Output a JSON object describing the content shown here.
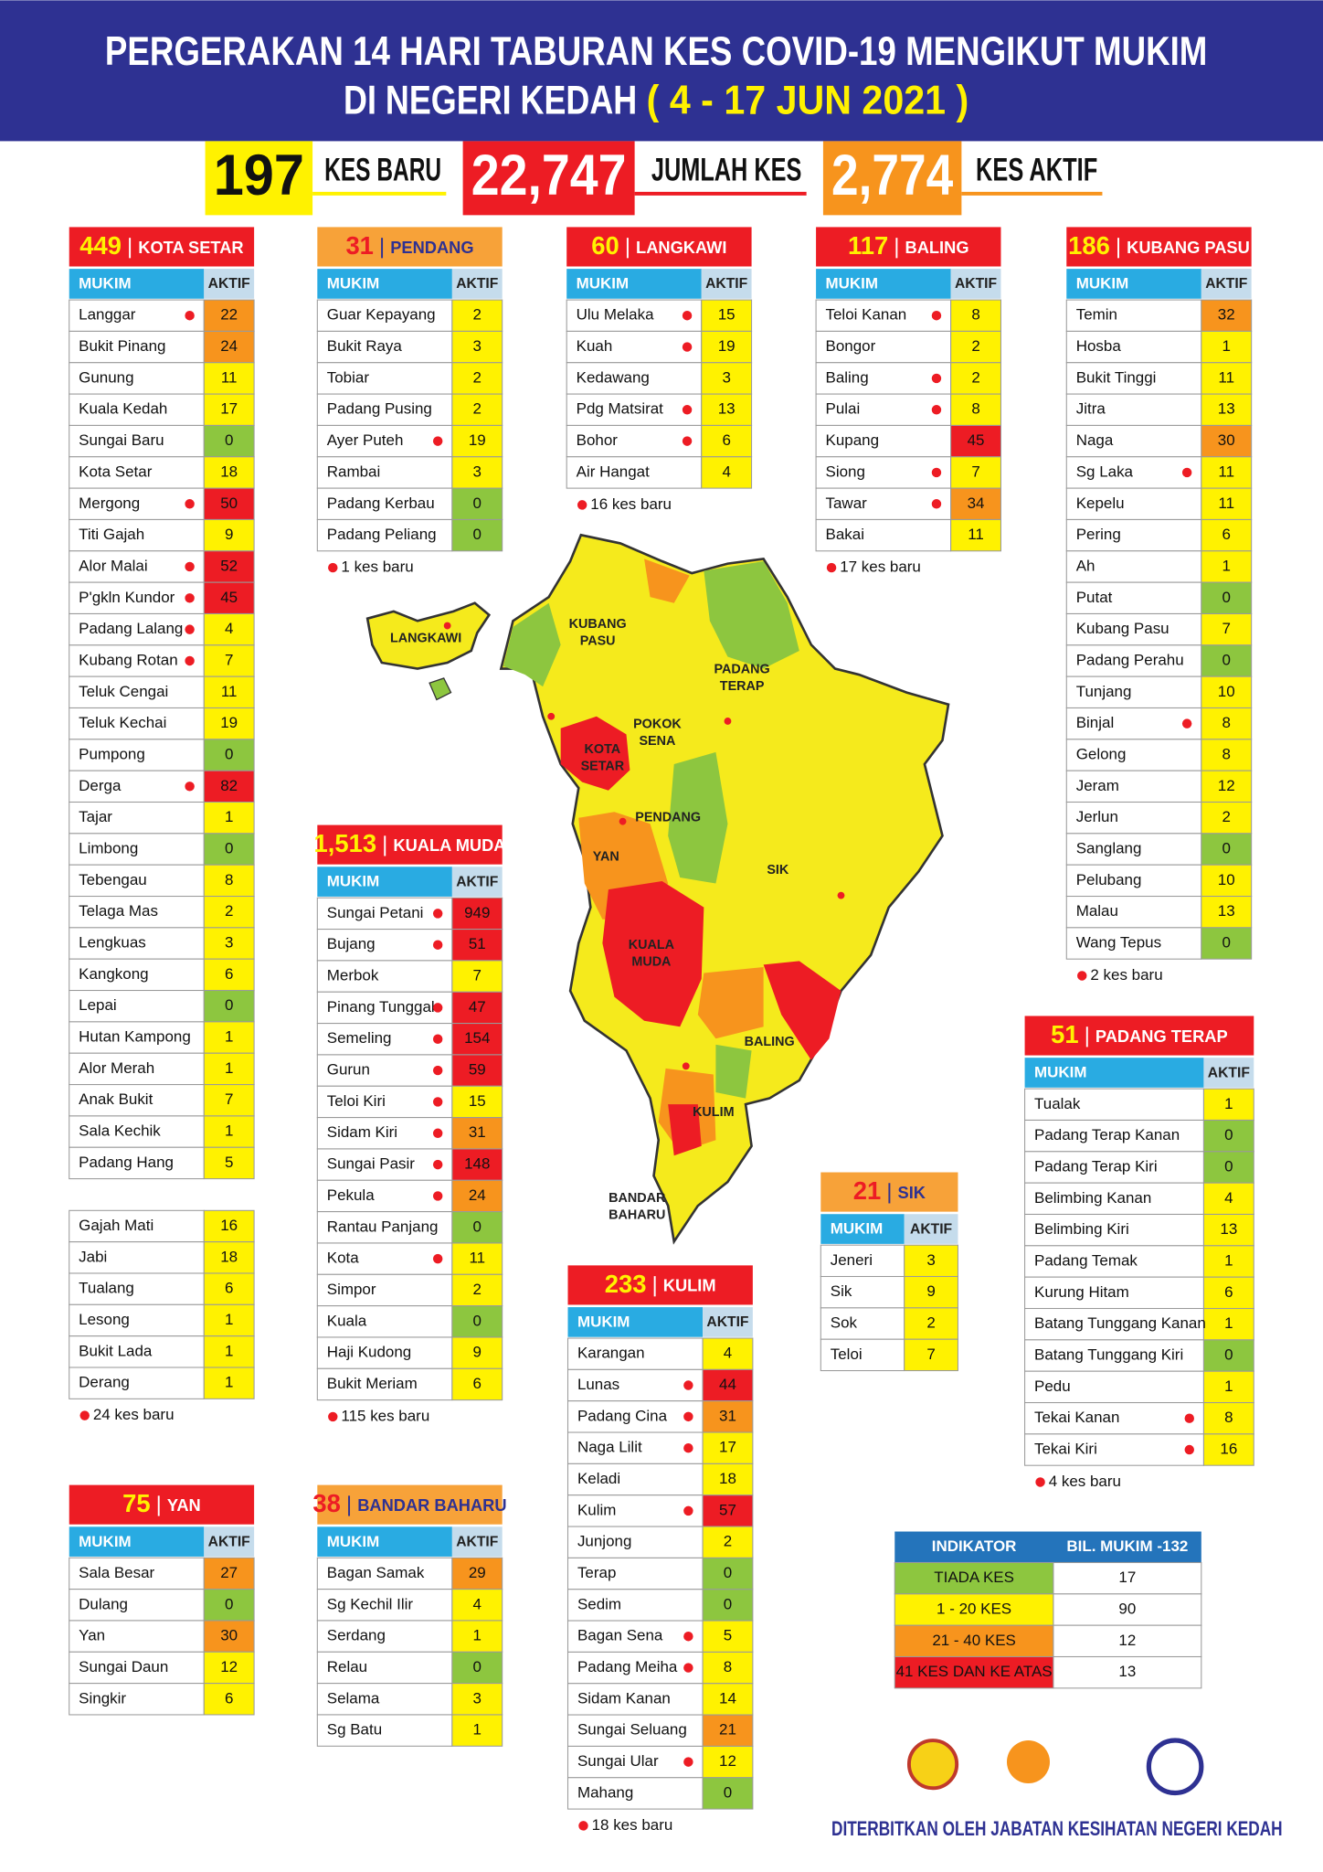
{
  "header": {
    "title_line1": "PERGERAKAN 14 HARI TABURAN KES COVID-19 MENGIKUT MUKIM",
    "title_line2": "DI NEGERI KEDAH",
    "date": "( 4 - 17 JUN 2021 )"
  },
  "stats": [
    {
      "number": 197,
      "label": "KES BARU",
      "color": "#fff200",
      "text_color": "#111111"
    },
    {
      "number": {
        "value": 22747,
        "label": "22,747"
      },
      "label": "JUMLAH KES",
      "color": "#ed1c24",
      "text_color": "#ffffff"
    },
    {
      "number": {
        "value": 2774,
        "label": "2,774"
      },
      "label": "KES AKTIF",
      "color": "#f7941d",
      "text_color": "#ffffff"
    }
  ],
  "table_header": [
    "MUKIM",
    "AKTIF"
  ],
  "districts": [
    {
      "total": 449,
      "name": "KOTA SETAR",
      "color": "#ed1c24",
      "number_color": "#fff200",
      "name_color": "#ffffff",
      "rows": [
        [
          "Langgar",
          22,
          true
        ],
        [
          "Bukit Pinang",
          24,
          false
        ],
        [
          "Gunung",
          11,
          false
        ],
        [
          "Kuala Kedah",
          17,
          false
        ],
        [
          "Sungai Baru",
          0,
          false
        ],
        [
          "Kota Setar",
          18,
          false
        ],
        [
          "Mergong",
          50,
          true
        ],
        [
          "Titi Gajah",
          9,
          false
        ],
        [
          "Alor Malai",
          52,
          true
        ],
        [
          "P'gkln Kundor",
          45,
          true
        ],
        [
          "Padang Lalang",
          4,
          true
        ],
        [
          "Kubang Rotan",
          7,
          true
        ],
        [
          "Teluk Cengai",
          11,
          false
        ],
        [
          "Teluk Kechai",
          19,
          false
        ],
        [
          "Pumpong",
          0,
          false
        ],
        [
          "Derga",
          82,
          true
        ],
        [
          "Tajar",
          1,
          false
        ],
        [
          "Limbong",
          0,
          false
        ],
        [
          "Tebengau",
          8,
          false
        ],
        [
          "Telaga Mas",
          2,
          false
        ],
        [
          "Lengkuas",
          3,
          false
        ],
        [
          "Kangkong",
          6,
          false
        ],
        [
          "Lepai",
          0,
          false
        ],
        [
          "Hutan Kampong",
          1,
          false
        ],
        [
          "Alor Merah",
          1,
          false
        ],
        [
          "Anak Bukit",
          7,
          false
        ],
        [
          "Sala Kechik",
          1,
          false
        ],
        [
          "Padang Hang",
          5,
          false
        ]
      ],
      "rows_more": [
        [
          "Gajah Mati",
          16,
          false
        ],
        [
          "Jabi",
          18,
          false
        ],
        [
          "Tualang",
          6,
          false
        ],
        [
          "Lesong",
          1,
          false
        ],
        [
          "Bukit Lada",
          1,
          false
        ],
        [
          "Derang",
          1,
          false
        ]
      ],
      "note": "24 kes baru"
    },
    {
      "total": 31,
      "name": "PENDANG",
      "color": "#f7a239",
      "number_color": "#ed1c24",
      "name_color": "#2e3192",
      "rows": [
        [
          "Guar Kepayang",
          2,
          false
        ],
        [
          "Bukit Raya",
          3,
          false
        ],
        [
          "Tobiar",
          2,
          false
        ],
        [
          "Padang Pusing",
          2,
          false
        ],
        [
          "Ayer Puteh",
          19,
          true
        ],
        [
          "Rambai",
          3,
          false
        ],
        [
          "Padang Kerbau",
          0,
          false
        ],
        [
          "Padang Peliang",
          0,
          false
        ]
      ],
      "note": "1 kes baru"
    },
    {
      "total": 60,
      "name": "LANGKAWI",
      "color": "#ed1c24",
      "number_color": "#fff200",
      "name_color": "#ffffff",
      "rows": [
        [
          "Ulu Melaka",
          15,
          true
        ],
        [
          "Kuah",
          19,
          true
        ],
        [
          "Kedawang",
          3,
          false
        ],
        [
          "Pdg Matsirat",
          13,
          true
        ],
        [
          "Bohor",
          6,
          true
        ],
        [
          "Air Hangat",
          4,
          false
        ]
      ],
      "note": "16 kes baru"
    },
    {
      "total": 117,
      "name": "BALING",
      "color": "#ed1c24",
      "number_color": "#fff200",
      "name_color": "#ffffff",
      "rows": [
        [
          "Teloi Kanan",
          8,
          true
        ],
        [
          "Bongor",
          2,
          false
        ],
        [
          "Baling",
          2,
          true
        ],
        [
          "Pulai",
          8,
          true
        ],
        [
          "Kupang",
          45,
          false
        ],
        [
          "Siong",
          7,
          true
        ],
        [
          "Tawar",
          34,
          true
        ],
        [
          "Bakai",
          11,
          false
        ]
      ],
      "note": "17 kes baru"
    },
    {
      "total": 186,
      "name": "KUBANG PASU",
      "color": "#ed1c24",
      "number_color": "#fff200",
      "name_color": "#ffffff",
      "rows": [
        [
          "Temin",
          32,
          false
        ],
        [
          "Hosba",
          1,
          false
        ],
        [
          "Bukit Tinggi",
          11,
          false
        ],
        [
          "Jitra",
          13,
          false
        ],
        [
          "Naga",
          30,
          false
        ],
        [
          "Sg Laka",
          11,
          true
        ],
        [
          "Kepelu",
          11,
          false
        ],
        [
          "Pering",
          6,
          false
        ],
        [
          "Ah",
          1,
          false
        ],
        [
          "Putat",
          0,
          false
        ],
        [
          "Kubang Pasu",
          7,
          false
        ],
        [
          "Padang Perahu",
          0,
          false
        ],
        [
          "Tunjang",
          10,
          false
        ],
        [
          "Binjal",
          8,
          true
        ],
        [
          "Gelong",
          8,
          false
        ],
        [
          "Jeram",
          12,
          false
        ],
        [
          "Jerlun",
          2,
          false
        ],
        [
          "Sanglang",
          0,
          false
        ],
        [
          "Pelubang",
          10,
          false
        ],
        [
          "Malau",
          13,
          false
        ],
        [
          "Wang Tepus",
          0,
          false
        ]
      ],
      "note": "2 kes baru"
    },
    {
      "total": {
        "value": 1513,
        "label": "1,513"
      },
      "name": "KUALA MUDA",
      "color": "#ed1c24",
      "number_color": "#fff200",
      "name_color": "#ffffff",
      "rows": [
        [
          "Sungai Petani",
          949,
          true
        ],
        [
          "Bujang",
          51,
          true
        ],
        [
          "Merbok",
          7,
          false
        ],
        [
          "Pinang Tunggal",
          47,
          true
        ],
        [
          "Semeling",
          154,
          true
        ],
        [
          "Gurun",
          59,
          true
        ],
        [
          "Teloi Kiri",
          15,
          true
        ],
        [
          "Sidam Kiri",
          31,
          true
        ],
        [
          "Sungai Pasir",
          148,
          true
        ],
        [
          "Pekula",
          24,
          true
        ],
        [
          "Rantau Panjang",
          0,
          false
        ],
        [
          "Kota",
          11,
          true
        ],
        [
          "Simpor",
          2,
          false
        ],
        [
          "Kuala",
          0,
          false
        ],
        [
          "Haji Kudong",
          9,
          false
        ],
        [
          "Bukit Meriam",
          6,
          false
        ]
      ],
      "note": "115 kes baru"
    },
    {
      "total": 51,
      "name": "PADANG TERAP",
      "color": "#ed1c24",
      "number_color": "#fff200",
      "name_color": "#ffffff",
      "rows": [
        [
          "Tualak",
          1,
          false
        ],
        [
          "Padang Terap Kanan",
          0,
          false
        ],
        [
          "Padang Terap Kiri",
          0,
          false
        ],
        [
          "Belimbing Kanan",
          4,
          false
        ],
        [
          "Belimbing Kiri",
          13,
          false
        ],
        [
          "Padang Temak",
          1,
          false
        ],
        [
          "Kurung Hitam",
          6,
          false
        ],
        [
          "Batang Tunggang Kanan",
          1,
          false
        ],
        [
          "Batang Tunggang Kiri",
          0,
          false
        ],
        [
          "Pedu",
          1,
          false
        ],
        [
          "Tekai Kanan",
          8,
          true
        ],
        [
          "Tekai Kiri",
          16,
          true
        ]
      ],
      "note": "4 kes baru"
    },
    {
      "total": 21,
      "name": "SIK",
      "color": "#f7a239",
      "number_color": "#ed1c24",
      "name_color": "#2e3192",
      "rows": [
        [
          "Jeneri",
          3,
          false
        ],
        [
          "Sik",
          9,
          false
        ],
        [
          "Sok",
          2,
          false
        ],
        [
          "Teloi",
          7,
          false
        ]
      ]
    },
    {
      "total": 233,
      "name": "KULIM",
      "color": "#ed1c24",
      "number_color": "#fff200",
      "name_color": "#ffffff",
      "rows": [
        [
          "Karangan",
          4,
          false
        ],
        [
          "Lunas",
          44,
          true
        ],
        [
          "Padang Cina",
          31,
          true
        ],
        [
          "Naga Lilit",
          17,
          true
        ],
        [
          "Keladi",
          18,
          false
        ],
        [
          "Kulim",
          57,
          true
        ],
        [
          "Junjong",
          2,
          false
        ],
        [
          "Terap",
          0,
          false
        ],
        [
          "Sedim",
          0,
          false
        ],
        [
          "Bagan Sena",
          5,
          true
        ],
        [
          "Padang Meiha",
          8,
          true
        ],
        [
          "Sidam Kanan",
          14,
          false
        ],
        [
          "Sungai Seluang",
          21,
          false
        ],
        [
          "Sungai Ular",
          12,
          true
        ],
        [
          "Mahang",
          0,
          false
        ]
      ],
      "note": "18 kes baru"
    },
    {
      "total": 75,
      "name": "YAN",
      "color": "#ed1c24",
      "number_color": "#fff200",
      "name_color": "#ffffff",
      "rows": [
        [
          "Sala Besar",
          27,
          false
        ],
        [
          "Dulang",
          0,
          false
        ],
        [
          "Yan",
          30,
          false
        ],
        [
          "Sungai Daun",
          12,
          false
        ],
        [
          "Singkir",
          6,
          false
        ]
      ]
    },
    {
      "total": 38,
      "name": "BANDAR BAHARU",
      "color": "#f7a239",
      "number_color": "#ed1c24",
      "name_color": "#2e3192",
      "rows": [
        [
          "Bagan Samak",
          29,
          false
        ],
        [
          "Sg Kechil Ilir",
          4,
          false
        ],
        [
          "Serdang",
          1,
          false
        ],
        [
          "Relau",
          0,
          false
        ],
        [
          "Selama",
          3,
          false
        ],
        [
          "Sg Batu",
          1,
          false
        ]
      ]
    }
  ],
  "map": {
    "labels": [
      [
        "LANGKAWI"
      ],
      [
        "KUBANG",
        "PASU"
      ],
      [
        "PADANG",
        "TERAP"
      ],
      [
        "POKOK",
        "SENA"
      ],
      [
        "KOTA",
        "SETAR"
      ],
      [
        "PENDANG"
      ],
      [
        "YAN"
      ],
      [
        "SIK"
      ],
      [
        "KUALA",
        "MUDA"
      ],
      [
        "BALING"
      ],
      [
        "KULIM"
      ],
      [
        "BANDAR",
        "BAHARU"
      ]
    ]
  },
  "legend": {
    "header": [
      "INDIKATOR",
      "BIL. MUKIM -132"
    ],
    "rows": [
      {
        "label": "TIADA KES",
        "count": 17,
        "color": "#8dc63f"
      },
      {
        "label": "1 - 20 KES",
        "count": 90,
        "color": "#fff200"
      },
      {
        "label": "21 - 40 KES",
        "count": 12,
        "color": "#f7941d"
      },
      {
        "label": "41 KES DAN KE ATAS",
        "count": 13,
        "color": "#ed1c24"
      }
    ]
  },
  "footer": {
    "publisher": "DITERBITKAN OLEH JABATAN KESIHATAN NEGERI KEDAH"
  }
}
